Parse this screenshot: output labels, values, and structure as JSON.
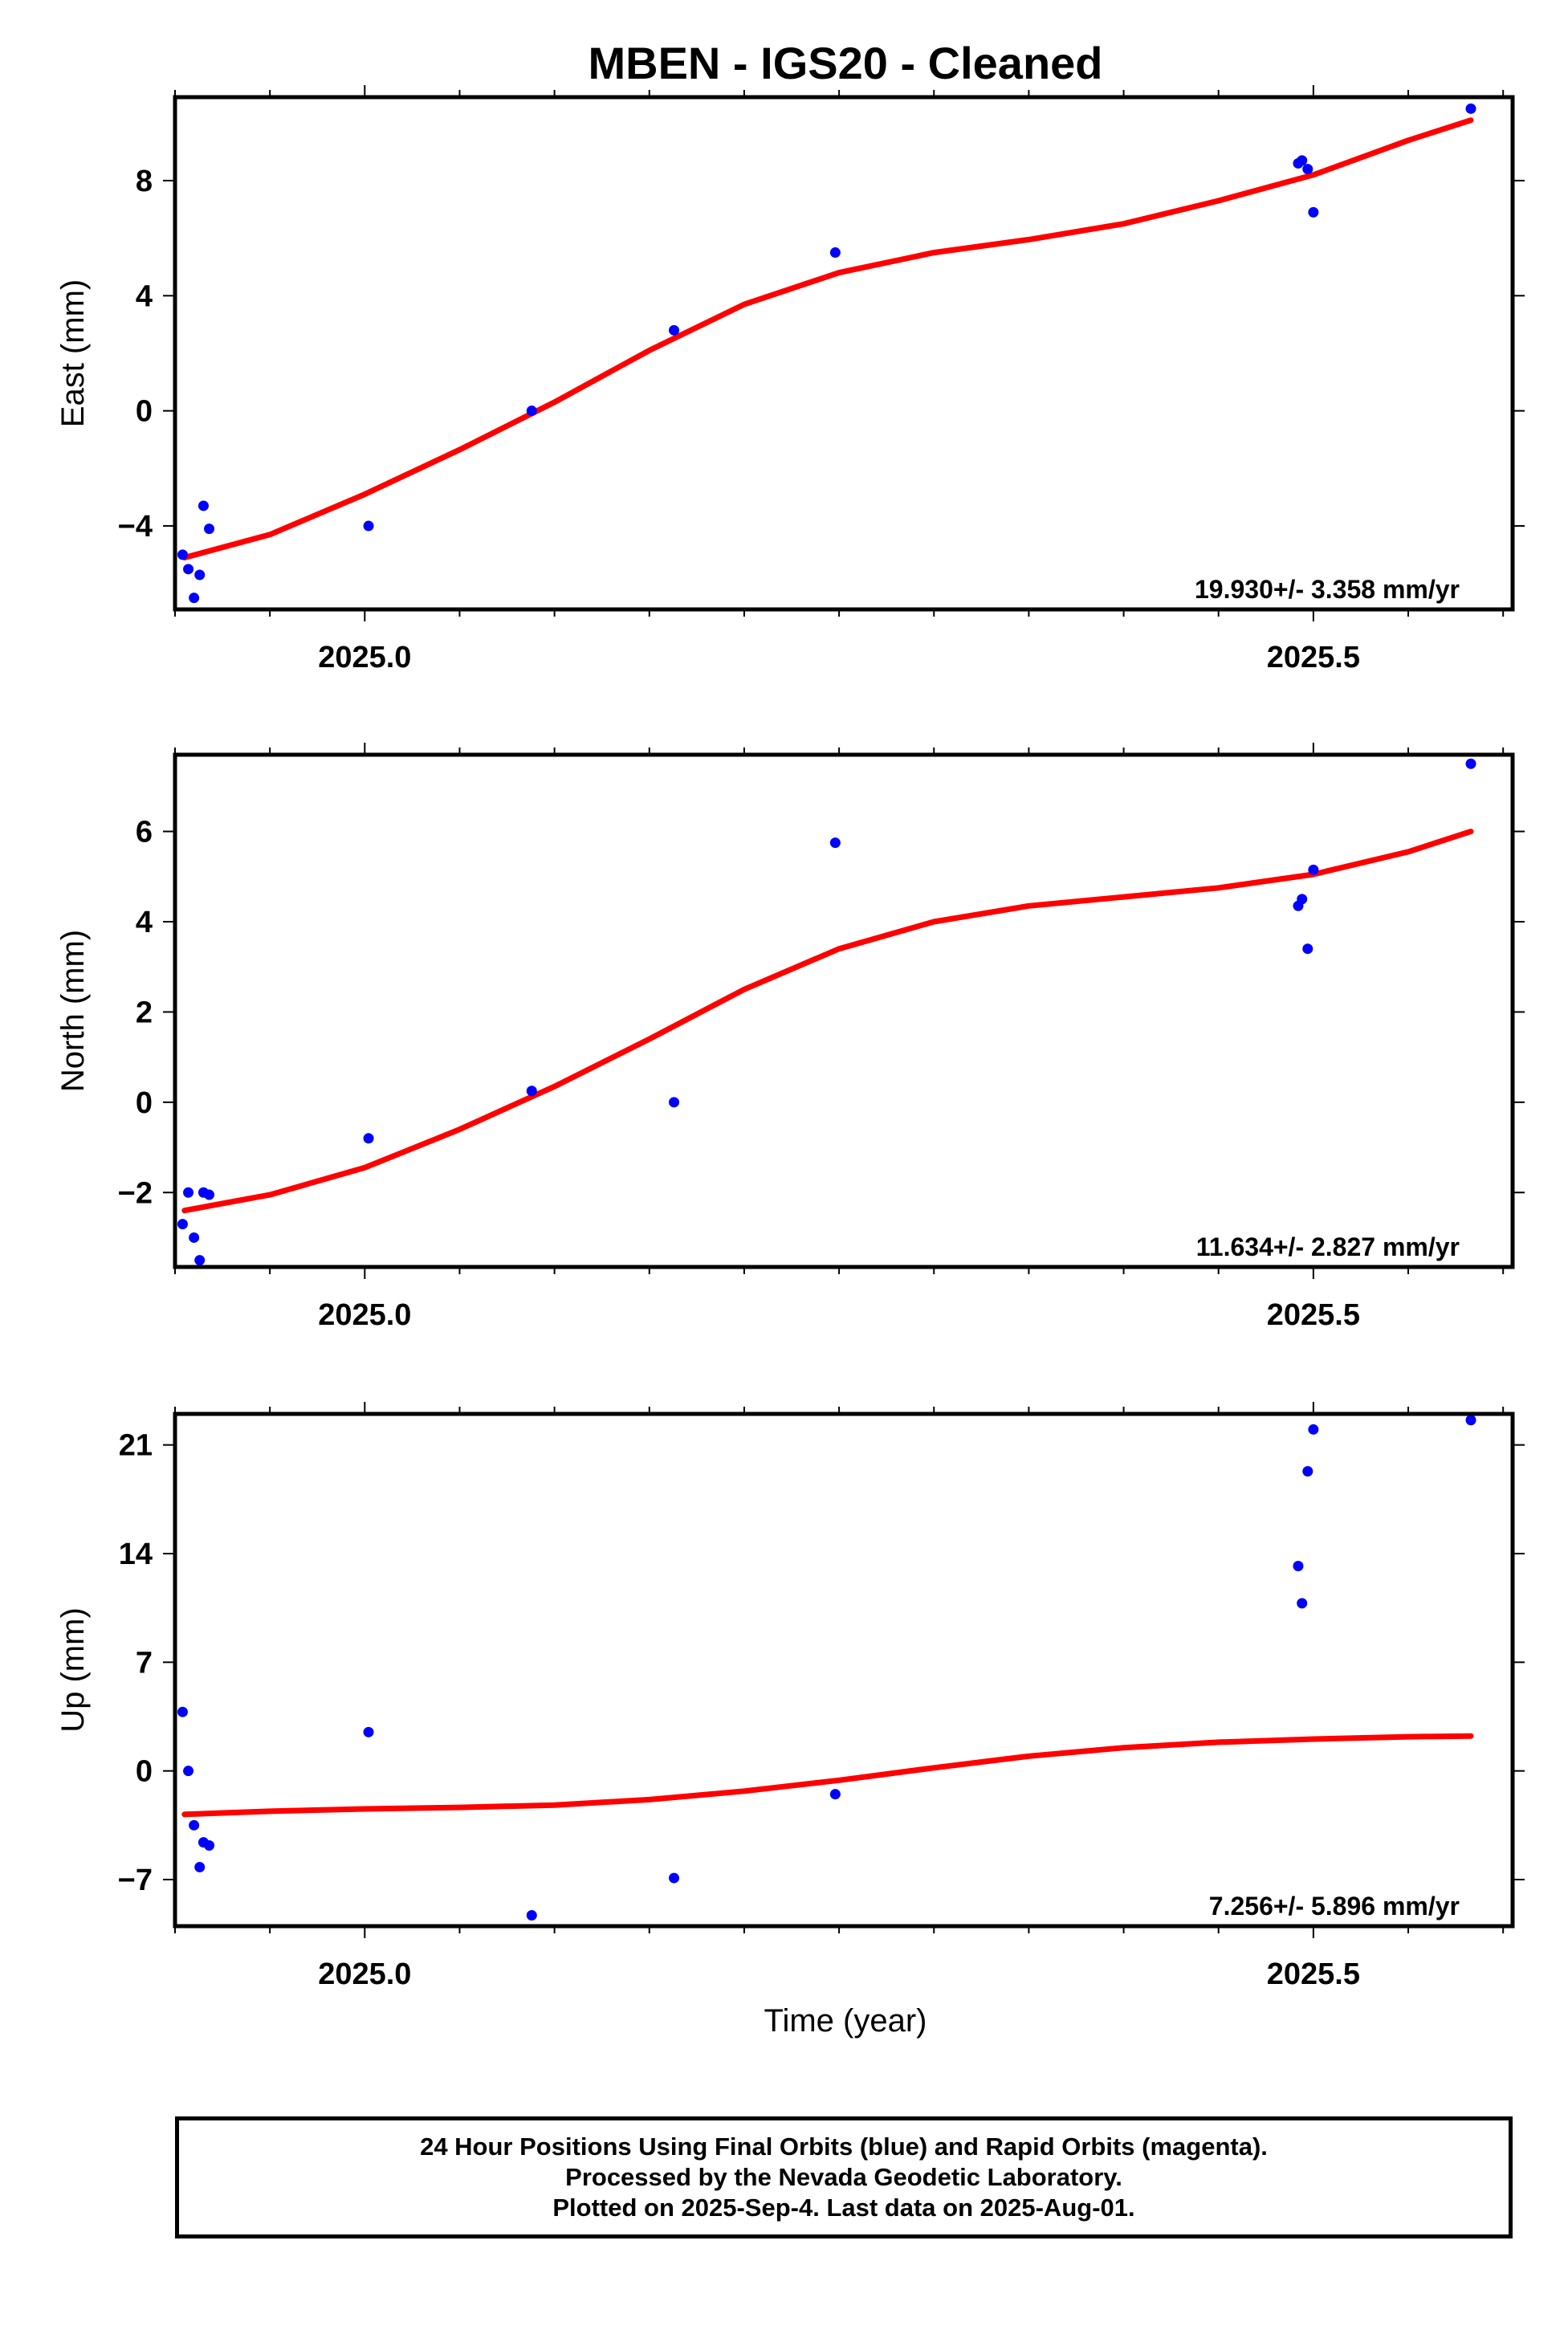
{
  "title": "MBEN  - IGS20 - Cleaned",
  "xlabel": "Time (year)",
  "colors": {
    "final_orbits": "#0000ff",
    "fit_line": "#ff0000",
    "frame": "#000000"
  },
  "chart_data": [
    {
      "type": "scatter",
      "component": "East",
      "ylabel": "East (mm)",
      "xlim": [
        2024.9,
        2025.605
      ],
      "ylim": [
        -6.9,
        10.9
      ],
      "xticks": [
        2025.0,
        2025.5
      ],
      "xtick_labels": [
        "2025.0",
        "2025.5"
      ],
      "yticks": [
        -4,
        0,
        4,
        8
      ],
      "ytick_labels": [
        "−4",
        "0",
        "4",
        "8"
      ],
      "rate_label": "19.930+/- 3.358 mm/yr",
      "points": {
        "x": [
          2024.904,
          2024.907,
          2024.91,
          2024.913,
          2024.915,
          2024.918,
          2025.002,
          2025.088,
          2025.163,
          2025.248,
          2025.492,
          2025.494,
          2025.497,
          2025.5,
          2025.583
        ],
        "y": [
          -5.0,
          -5.5,
          -6.5,
          -5.7,
          -3.3,
          -4.1,
          -4.0,
          0.0,
          2.8,
          5.5,
          8.6,
          8.7,
          8.4,
          6.9,
          10.5
        ]
      },
      "fit": {
        "x": [
          2024.905,
          2024.95,
          2025.0,
          2025.05,
          2025.1,
          2025.15,
          2025.2,
          2025.25,
          2025.3,
          2025.35,
          2025.4,
          2025.45,
          2025.5,
          2025.55,
          2025.583
        ],
        "y": [
          -5.1,
          -4.3,
          -2.9,
          -1.35,
          0.3,
          2.1,
          3.7,
          4.8,
          5.5,
          5.95,
          6.5,
          7.3,
          8.2,
          9.4,
          10.1
        ]
      }
    },
    {
      "type": "scatter",
      "component": "North",
      "ylabel": "North (mm)",
      "xlim": [
        2024.9,
        2025.605
      ],
      "ylim": [
        -3.65,
        7.7
      ],
      "xticks": [
        2025.0,
        2025.5
      ],
      "xtick_labels": [
        "2025.0",
        "2025.5"
      ],
      "yticks": [
        -2,
        0,
        2,
        4,
        6
      ],
      "ytick_labels": [
        "−2",
        "0",
        "2",
        "4",
        "6"
      ],
      "rate_label": "11.634+/- 2.827 mm/yr",
      "points": {
        "x": [
          2024.904,
          2024.907,
          2024.91,
          2024.913,
          2024.915,
          2024.918,
          2025.002,
          2025.088,
          2025.163,
          2025.248,
          2025.492,
          2025.494,
          2025.497,
          2025.5,
          2025.583
        ],
        "y": [
          -2.7,
          -2.0,
          -3.0,
          -3.5,
          -2.0,
          -2.05,
          -0.8,
          0.25,
          0.0,
          5.75,
          4.35,
          4.5,
          3.4,
          5.15,
          7.5
        ]
      },
      "fit": {
        "x": [
          2024.905,
          2024.95,
          2025.0,
          2025.05,
          2025.1,
          2025.15,
          2025.2,
          2025.25,
          2025.3,
          2025.35,
          2025.4,
          2025.45,
          2025.5,
          2025.55,
          2025.583
        ],
        "y": [
          -2.4,
          -2.05,
          -1.45,
          -0.6,
          0.35,
          1.4,
          2.5,
          3.4,
          4.0,
          4.35,
          4.55,
          4.75,
          5.05,
          5.55,
          6.0
        ]
      }
    },
    {
      "type": "scatter",
      "component": "Up",
      "ylabel": "Up (mm)",
      "xlim": [
        2024.9,
        2025.605
      ],
      "ylim": [
        -10.0,
        23.0
      ],
      "xticks": [
        2025.0,
        2025.5
      ],
      "xtick_labels": [
        "2025.0",
        "2025.5"
      ],
      "yticks": [
        -7,
        0,
        7,
        14,
        21
      ],
      "ytick_labels": [
        "−7",
        "0",
        "7",
        "14",
        "21"
      ],
      "rate_label": "7.256+/- 5.896 mm/yr",
      "points": {
        "x": [
          2024.904,
          2024.907,
          2024.91,
          2024.913,
          2024.915,
          2024.918,
          2025.002,
          2025.088,
          2025.163,
          2025.248,
          2025.492,
          2025.494,
          2025.497,
          2025.5,
          2025.583
        ],
        "y": [
          3.8,
          0.0,
          -3.5,
          -6.2,
          -4.6,
          -4.8,
          2.5,
          -9.3,
          -6.9,
          -1.5,
          13.2,
          10.8,
          19.3,
          22.0,
          22.6
        ]
      },
      "fit": {
        "x": [
          2024.905,
          2024.95,
          2025.0,
          2025.05,
          2025.1,
          2025.15,
          2025.2,
          2025.25,
          2025.3,
          2025.35,
          2025.4,
          2025.45,
          2025.5,
          2025.55,
          2025.583
        ],
        "y": [
          -2.8,
          -2.6,
          -2.45,
          -2.35,
          -2.2,
          -1.85,
          -1.3,
          -0.6,
          0.2,
          0.95,
          1.5,
          1.85,
          2.05,
          2.2,
          2.25
        ]
      }
    }
  ],
  "caption": {
    "line1": "24 Hour Positions Using Final Orbits (blue) and Rapid Orbits (magenta).",
    "line2": "Processed by the Nevada Geodetic Laboratory.",
    "line3": "Plotted on 2025-Sep-4. Last data on 2025-Aug-01."
  }
}
